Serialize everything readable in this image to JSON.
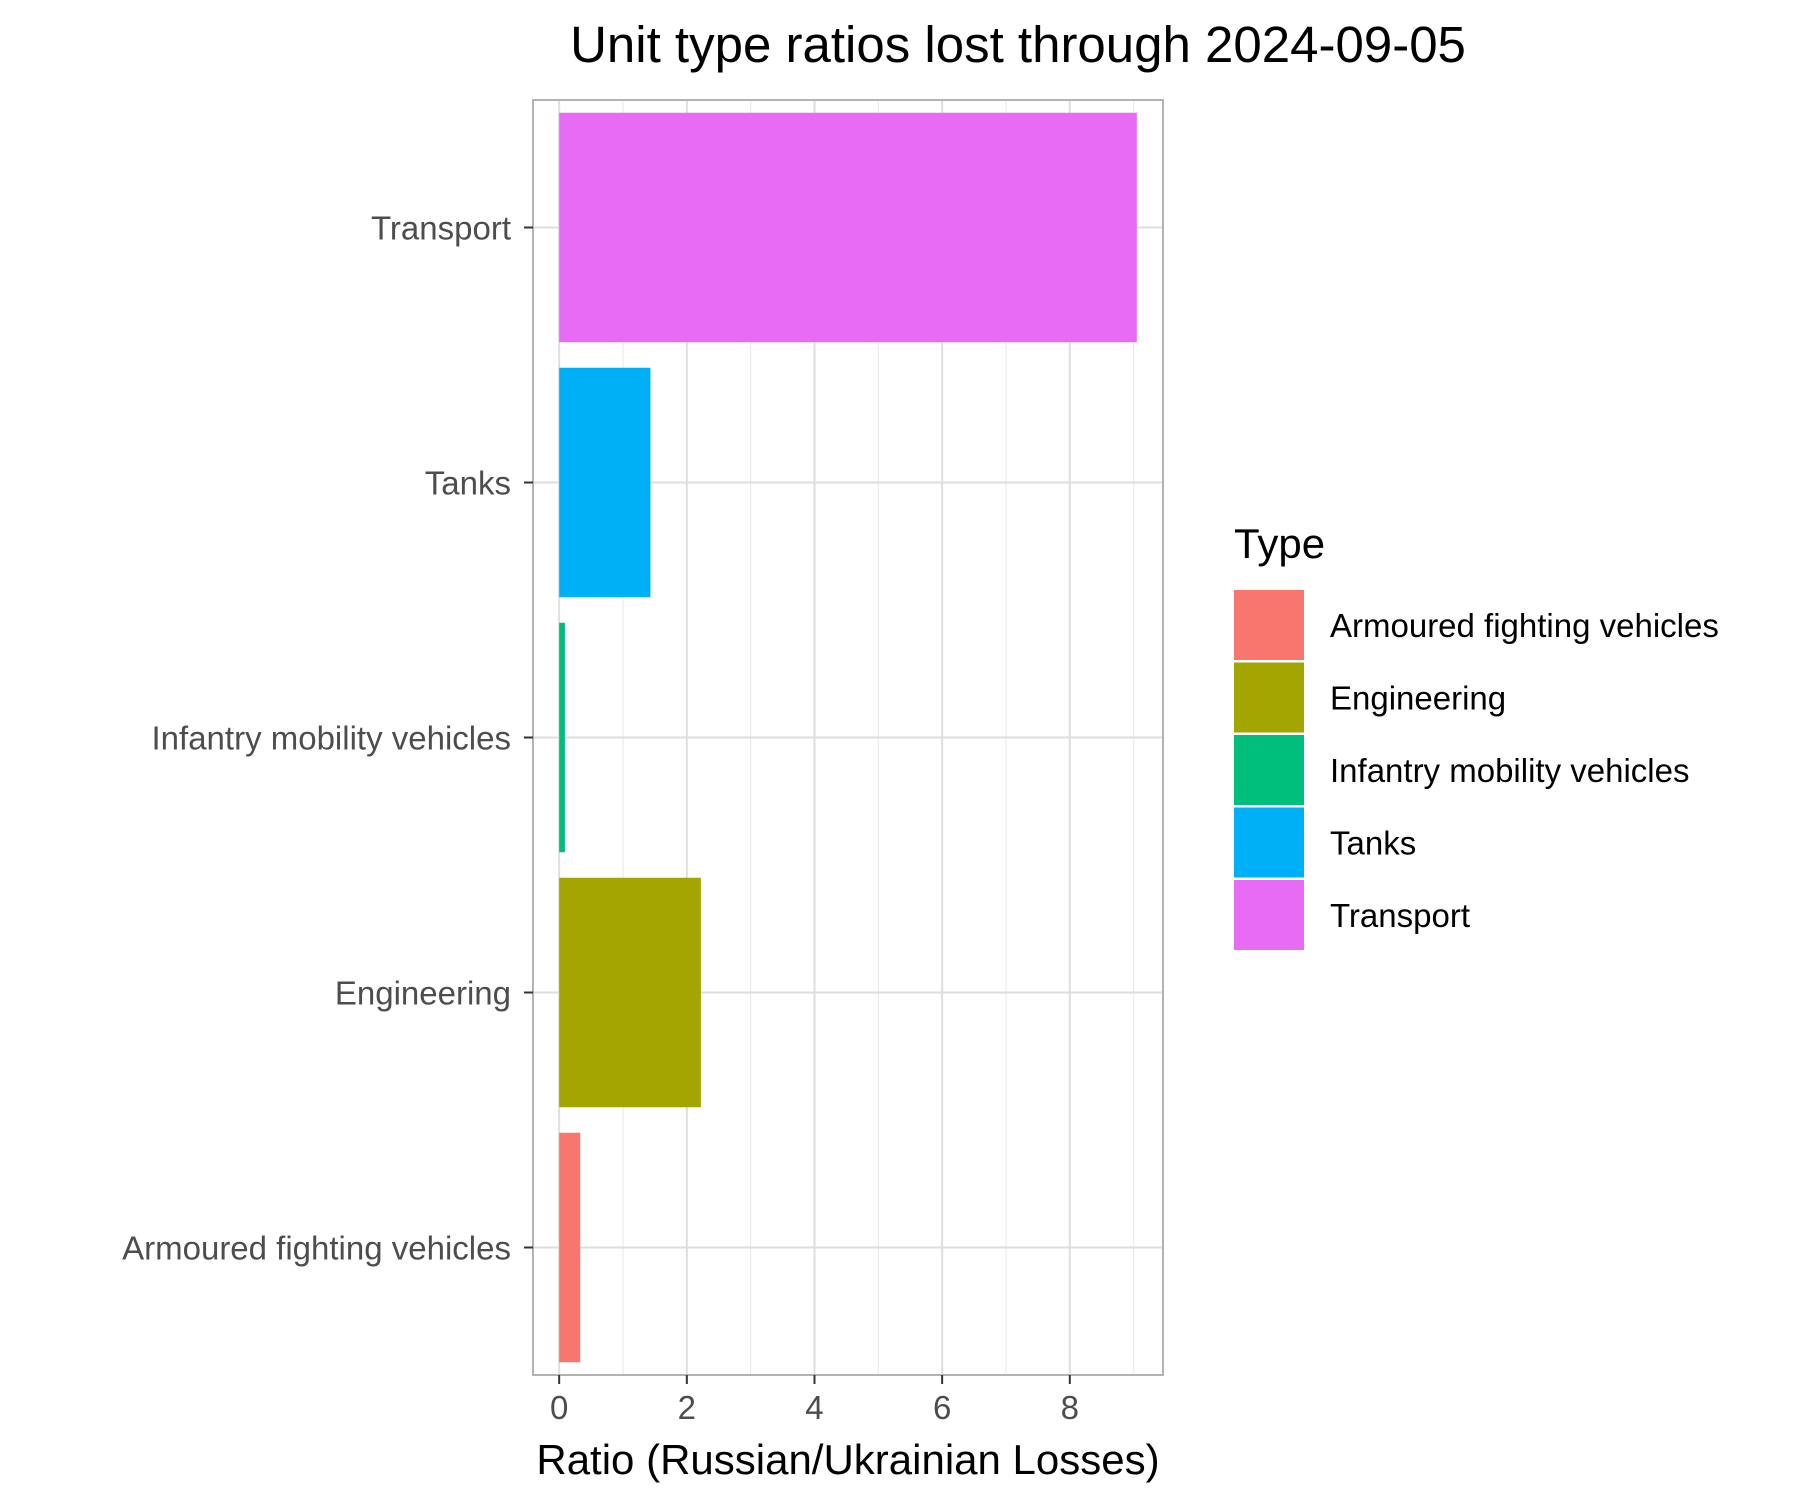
{
  "chart_data": {
    "type": "bar",
    "orientation": "horizontal",
    "title": "Unit type ratios lost through 2024-09-05",
    "xlabel": "Ratio (Russian/Ukrainian Losses)",
    "ylabel": "",
    "categories": [
      "Armoured fighting vehicles",
      "Engineering",
      "Infantry mobility vehicles",
      "Tanks",
      "Transport"
    ],
    "values": [
      0.33,
      2.22,
      0.09,
      1.43,
      9.05
    ],
    "colors": [
      "#F8766D",
      "#A3A500",
      "#00BF7D",
      "#00B0F6",
      "#E76BF3"
    ],
    "xlim": [
      -0.41,
      9.46
    ],
    "xticks": [
      0,
      2,
      4,
      6,
      8
    ],
    "xtick_labels": [
      "0",
      "2",
      "4",
      "6",
      "8"
    ],
    "grid": true,
    "legend": {
      "title": "Type",
      "placement": "right",
      "items": [
        "Armoured fighting vehicles",
        "Engineering",
        "Infantry mobility vehicles",
        "Tanks",
        "Transport"
      ]
    }
  }
}
